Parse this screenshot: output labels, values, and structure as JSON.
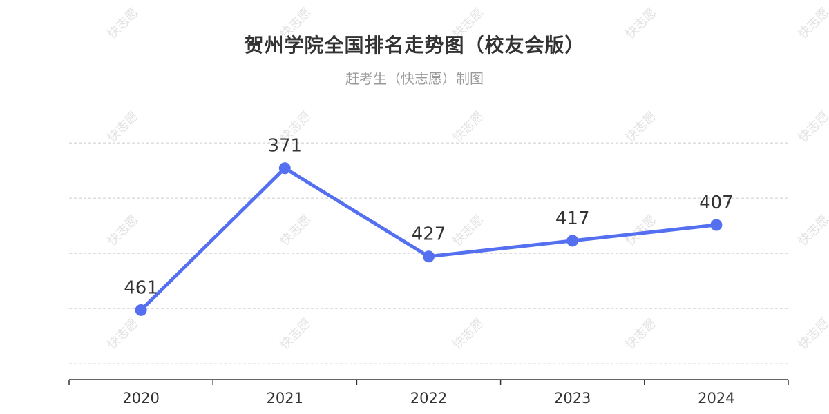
{
  "chart_data": {
    "type": "line",
    "title": "贺州学院全国排名走势图（校友会版）",
    "subtitle": "赶考生（快志愿）制图",
    "categories": [
      "2020",
      "2021",
      "2022",
      "2023",
      "2024"
    ],
    "series": [
      {
        "values": [
          461,
          371,
          427,
          417,
          407
        ]
      }
    ],
    "data_labels": [
      "461",
      "371",
      "427",
      "417",
      "407"
    ],
    "y_axis_inverted": true,
    "ylim": [
      330,
      505
    ],
    "y_gridlines": [
      355,
      390,
      425,
      460,
      495
    ],
    "grid": true,
    "y_tick_labels_shown": false,
    "xlabel": "",
    "ylabel": "",
    "colors": {
      "line": "#5470f0",
      "text": "#333333",
      "grid": "#cccccc",
      "axis": "#333333"
    }
  },
  "watermark": {
    "text": "快志愿"
  }
}
